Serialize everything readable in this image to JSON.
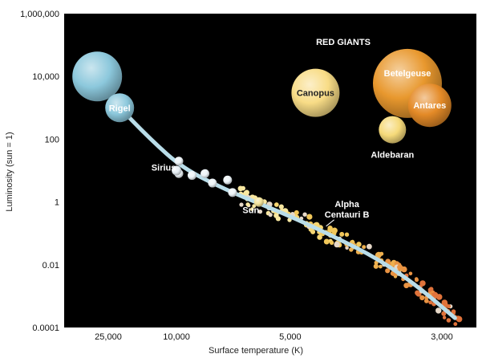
{
  "chart_data": {
    "type": "scatter",
    "title": "",
    "xlabel": "Surface temperature (K)",
    "ylabel": "Luminosity (sun = 1)",
    "x_ticks": [
      25000,
      10000,
      5000,
      3000
    ],
    "x_tick_labels": [
      "25,000",
      "10,000",
      "5,000",
      "3,000"
    ],
    "y_ticks": [
      0.0001,
      0.01,
      1,
      100,
      10000,
      1000000
    ],
    "y_tick_labels": [
      "0.0001",
      "0.01",
      "1",
      "100",
      "10,000",
      "1,000,000"
    ],
    "x_scale": "reciprocal, temperature decreasing to the right",
    "y_scale": "log",
    "grid": false,
    "background_color": "#000000",
    "region_label": "RED GIANTS",
    "main_sequence_curve": {
      "color": "#b9dde9",
      "x": [
        33000,
        22000,
        13000,
        9500,
        7000,
        5800,
        5000,
        4200,
        3600,
        3200,
        2900
      ],
      "y": [
        10000,
        1500,
        100,
        12,
        2.5,
        0.9,
        0.35,
        0.08,
        0.015,
        0.002,
        0.0002
      ]
    },
    "named_stars": [
      {
        "name": "",
        "x": 33000,
        "y": 10000,
        "color": "#8cc8dc"
      },
      {
        "name": "Rigel",
        "x": 20000,
        "y": 1000,
        "color": "#8cc8dc"
      },
      {
        "name": "Sirius",
        "x": 10000,
        "y": 10,
        "color": "#e6eef4"
      },
      {
        "name": "Sun",
        "x": 5800,
        "y": 1,
        "color": "#f2e39a"
      },
      {
        "name": "Alpha Centauri B",
        "x": 4400,
        "y": 0.15,
        "color": "#f3cf72"
      },
      {
        "name": "Canopus",
        "x": 4500,
        "y": 3000,
        "color": "#f8dc86"
      },
      {
        "name": "Betelgeuse",
        "x": 3300,
        "y": 6000,
        "color": "#e8982e"
      },
      {
        "name": "Antares",
        "x": 3100,
        "y": 1200,
        "color": "#e48a27"
      },
      {
        "name": "Aldebaran",
        "x": 3450,
        "y": 200,
        "color": "#f6da7a"
      }
    ],
    "white_stars": {
      "color": "#ecf3f7",
      "x": [
        9800,
        9800,
        8800,
        8000,
        7600,
        6900,
        6700
      ],
      "y": [
        20,
        8,
        7,
        8,
        4,
        5,
        2
      ]
    },
    "main_sequence_dot_colors": [
      "#f8e7a0",
      "#f6d672",
      "#f1c75a",
      "#eeb04e",
      "#e99342",
      "#e0733b",
      "#e6d8c8"
    ]
  }
}
